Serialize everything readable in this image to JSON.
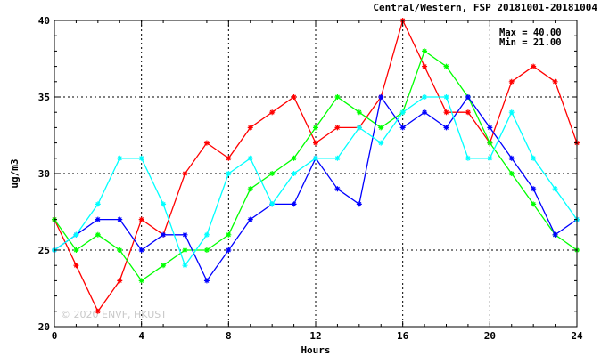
{
  "chart_data": {
    "type": "line",
    "title": "Central/Western, FSP 20181001-20181004",
    "xlabel": "Hours",
    "ylabel": "ug/m3",
    "xlim": [
      0,
      24
    ],
    "ylim": [
      20,
      40
    ],
    "xticks": [
      "0",
      "4",
      "8",
      "12",
      "16",
      "20",
      "24"
    ],
    "yticks": [
      "20",
      "25",
      "30",
      "35",
      "40"
    ],
    "grid": true,
    "stats": {
      "max": "Max = 40.00",
      "min": "Min = 21.00"
    },
    "watermark": "© 2020 ENVF, HKUST",
    "x": [
      0,
      1,
      2,
      3,
      4,
      5,
      6,
      7,
      8,
      9,
      10,
      11,
      12,
      13,
      14,
      15,
      16,
      17,
      18,
      19,
      20,
      21,
      22,
      23,
      24
    ],
    "series": [
      {
        "color": "#ff0000",
        "values": [
          27,
          24,
          21,
          23,
          27,
          26,
          30,
          32,
          31,
          33,
          34,
          35,
          32,
          33,
          33,
          35,
          40,
          37,
          34,
          34,
          32,
          36,
          37,
          36,
          32
        ]
      },
      {
        "color": "#00ff00",
        "values": [
          27,
          25,
          26,
          25,
          23,
          24,
          25,
          25,
          26,
          29,
          30,
          31,
          33,
          35,
          34,
          33,
          34,
          38,
          37,
          35,
          32,
          30,
          28,
          26,
          25
        ]
      },
      {
        "color": "#0000ff",
        "values": [
          25,
          26,
          27,
          27,
          25,
          26,
          26,
          23,
          25,
          27,
          28,
          28,
          31,
          29,
          28,
          35,
          33,
          34,
          33,
          35,
          33,
          31,
          29,
          26,
          27
        ]
      },
      {
        "color": "#00ffff",
        "values": [
          25,
          26,
          28,
          31,
          31,
          28,
          24,
          26,
          30,
          31,
          28,
          30,
          31,
          31,
          33,
          32,
          34,
          35,
          35,
          31,
          31,
          34,
          31,
          29,
          27
        ]
      }
    ]
  }
}
